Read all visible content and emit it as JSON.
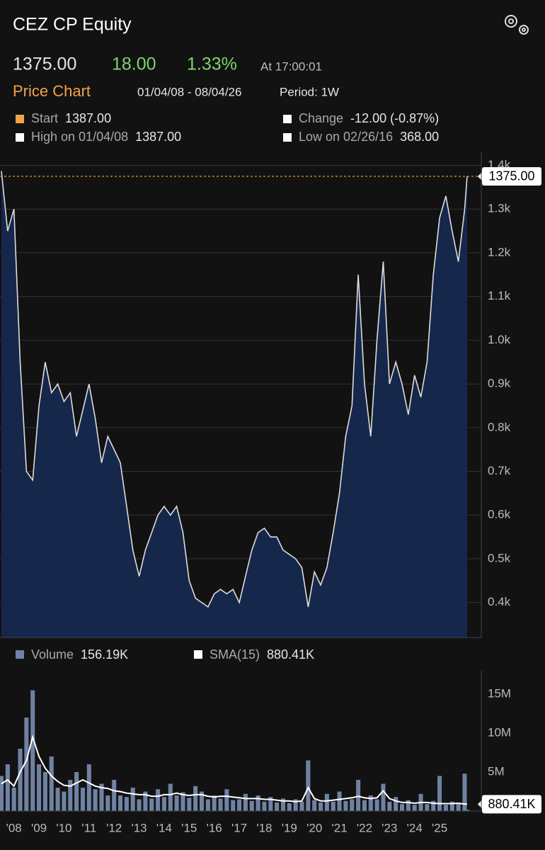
{
  "header": {
    "title": "CEZ CP Equity",
    "price": "1375.00",
    "change": "18.00",
    "change_pct": "1.33%",
    "time": "At 17:00:01"
  },
  "summary": {
    "title": "Price Chart",
    "range": "01/04/08 - 08/04/26",
    "period": "Period: 1W",
    "items": [
      {
        "label": "Start",
        "value": "1387.00",
        "color": "#f4a24a"
      },
      {
        "label": "Change",
        "value": "-12.00 (-0.87%)",
        "color": "#ffffff"
      },
      {
        "label": "High on 01/04/08",
        "value": "1387.00",
        "color": "#ffffff"
      },
      {
        "label": "Low on 02/26/16",
        "value": "368.00",
        "color": "#ffffff"
      }
    ]
  },
  "chart_data": [
    {
      "type": "area",
      "color": "#dcdcdc",
      "fill": "#15274b",
      "ref_color": "#f4a24a",
      "last_label": "1375.00",
      "x": [
        2008,
        2008.25,
        2008.5,
        2008.75,
        2009,
        2009.25,
        2009.5,
        2009.75,
        2010,
        2010.25,
        2010.5,
        2010.75,
        2011,
        2011.25,
        2011.5,
        2011.75,
        2012,
        2012.25,
        2012.5,
        2012.75,
        2013,
        2013.25,
        2013.5,
        2013.75,
        2014,
        2014.25,
        2014.5,
        2014.75,
        2015,
        2015.25,
        2015.5,
        2015.75,
        2016,
        2016.25,
        2016.5,
        2016.75,
        2017,
        2017.25,
        2017.5,
        2017.75,
        2018,
        2018.25,
        2018.5,
        2018.75,
        2019,
        2019.25,
        2019.5,
        2019.75,
        2020,
        2020.25,
        2020.5,
        2020.75,
        2021,
        2021.25,
        2021.5,
        2021.75,
        2022,
        2022.25,
        2022.5,
        2022.75,
        2023,
        2023.25,
        2023.5,
        2023.75,
        2024,
        2024.25,
        2024.5,
        2024.75,
        2025,
        2025.25,
        2025.5,
        2025.75,
        2026,
        2026.25,
        2026.5,
        2026.6
      ],
      "values": [
        1387,
        1250,
        1300,
        950,
        700,
        680,
        850,
        950,
        880,
        900,
        860,
        880,
        780,
        840,
        900,
        820,
        720,
        780,
        750,
        720,
        620,
        520,
        460,
        520,
        560,
        600,
        620,
        600,
        620,
        560,
        450,
        410,
        400,
        390,
        420,
        430,
        420,
        430,
        400,
        460,
        520,
        560,
        570,
        550,
        550,
        520,
        510,
        500,
        480,
        390,
        470,
        440,
        480,
        560,
        650,
        780,
        850,
        1150,
        900,
        780,
        1000,
        1180,
        900,
        950,
        900,
        830,
        920,
        870,
        950,
        1150,
        1280,
        1330,
        1250,
        1180,
        1300,
        1375
      ],
      "xlim": [
        2008,
        2026.6
      ],
      "ylim": [
        320,
        1430
      ],
      "yticks": [
        {
          "value": 400,
          "label": "0.4k"
        },
        {
          "value": 500,
          "label": "0.5k"
        },
        {
          "value": 600,
          "label": "0.6k"
        },
        {
          "value": 700,
          "label": "0.7k"
        },
        {
          "value": 800,
          "label": "0.8k"
        },
        {
          "value": 900,
          "label": "0.9k"
        },
        {
          "value": 1000,
          "label": "1.0k"
        },
        {
          "value": 1100,
          "label": "1.1k"
        },
        {
          "value": 1200,
          "label": "1.2k"
        },
        {
          "value": 1300,
          "label": "1.3k"
        },
        {
          "value": 1400,
          "label": "1.4k"
        }
      ],
      "grid": true
    },
    {
      "type": "bar",
      "x": [
        2008,
        2008.25,
        2008.5,
        2008.75,
        2009,
        2009.25,
        2009.5,
        2009.75,
        2010,
        2010.25,
        2010.5,
        2010.75,
        2011,
        2011.25,
        2011.5,
        2011.75,
        2012,
        2012.25,
        2012.5,
        2012.75,
        2013,
        2013.25,
        2013.5,
        2013.75,
        2014,
        2014.25,
        2014.5,
        2014.75,
        2015,
        2015.25,
        2015.5,
        2015.75,
        2016,
        2016.25,
        2016.5,
        2016.75,
        2017,
        2017.25,
        2017.5,
        2017.75,
        2018,
        2018.25,
        2018.5,
        2018.75,
        2019,
        2019.25,
        2019.5,
        2019.75,
        2020,
        2020.25,
        2020.5,
        2020.75,
        2021,
        2021.25,
        2021.5,
        2021.75,
        2022,
        2022.25,
        2022.5,
        2022.75,
        2023,
        2023.25,
        2023.5,
        2023.75,
        2024,
        2024.25,
        2024.5,
        2024.75,
        2025,
        2025.25,
        2025.5,
        2025.75,
        2026,
        2026.25,
        2026.5,
        2026.6
      ],
      "series": [
        {
          "name": "Volume",
          "type": "bar",
          "color": "#6f82a3",
          "last_label": "156.19K",
          "values": [
            4500000,
            6000000,
            3000000,
            8000000,
            12000000,
            15500000,
            6000000,
            5000000,
            7000000,
            3000000,
            2500000,
            4000000,
            5000000,
            3000000,
            6000000,
            2800000,
            3500000,
            2000000,
            4000000,
            2000000,
            1800000,
            3000000,
            1500000,
            2500000,
            1600000,
            2800000,
            1800000,
            3500000,
            2000000,
            2400000,
            1700000,
            3200000,
            2500000,
            1500000,
            2000000,
            1600000,
            2800000,
            1400000,
            1500000,
            2200000,
            1300000,
            2000000,
            1200000,
            1800000,
            1100000,
            1600000,
            1000000,
            1500000,
            1200000,
            6500000,
            1400000,
            1100000,
            2200000,
            1200000,
            2500000,
            1300000,
            1500000,
            4000000,
            1400000,
            2000000,
            1500000,
            3500000,
            1200000,
            1800000,
            900000,
            1400000,
            800000,
            2200000,
            900000,
            1300000,
            4500000,
            800000,
            1200000,
            900000,
            4800000,
            156190
          ]
        },
        {
          "name": "SMA(15)",
          "type": "line",
          "color": "#ffffff",
          "last_label": "880.41K",
          "values": [
            3500000,
            4000000,
            3200000,
            5000000,
            6500000,
            9500000,
            7000000,
            5500000,
            4500000,
            3800000,
            3300000,
            3200000,
            3600000,
            4000000,
            3600000,
            3200000,
            3000000,
            2900000,
            2600000,
            2500000,
            2300000,
            2200000,
            2100000,
            2100000,
            1900000,
            1900000,
            2100000,
            2100000,
            2300000,
            2100000,
            2000000,
            2100000,
            2100000,
            1900000,
            1800000,
            1900000,
            1900000,
            1800000,
            1700000,
            1600000,
            1600000,
            1600000,
            1500000,
            1500000,
            1400000,
            1300000,
            1300000,
            1200000,
            1300000,
            3000000,
            1600000,
            1300000,
            1300000,
            1400000,
            1500000,
            1600000,
            1700000,
            1900000,
            1700000,
            1600000,
            1700000,
            2600000,
            1600000,
            1300000,
            1100000,
            1100000,
            1000000,
            1100000,
            1100000,
            1000000,
            950000,
            950000,
            950000,
            1000000,
            900000,
            880410
          ]
        }
      ],
      "xlim": [
        2008,
        2026.6
      ],
      "ylim": [
        0,
        18000000
      ],
      "xticks": [
        {
          "value": 2008,
          "label": "'08"
        },
        {
          "value": 2009,
          "label": "'09"
        },
        {
          "value": 2010,
          "label": "'10"
        },
        {
          "value": 2011,
          "label": "'11"
        },
        {
          "value": 2012,
          "label": "'12"
        },
        {
          "value": 2013,
          "label": "'13"
        },
        {
          "value": 2014,
          "label": "'14"
        },
        {
          "value": 2015,
          "label": "'15"
        },
        {
          "value": 2016,
          "label": "'16"
        },
        {
          "value": 2017,
          "label": "'17"
        },
        {
          "value": 2018,
          "label": "'18"
        },
        {
          "value": 2019,
          "label": "'19"
        },
        {
          "value": 2020,
          "label": "'20"
        },
        {
          "value": 2021,
          "label": "'21"
        },
        {
          "value": 2022,
          "label": "'22"
        },
        {
          "value": 2023,
          "label": "'23"
        },
        {
          "value": 2024,
          "label": "'24"
        },
        {
          "value": 2025,
          "label": "'25"
        }
      ],
      "yticks": [
        {
          "value": 5000000,
          "label": "5M"
        },
        {
          "value": 10000000,
          "label": "10M"
        },
        {
          "value": 15000000,
          "label": "15M"
        }
      ]
    }
  ]
}
